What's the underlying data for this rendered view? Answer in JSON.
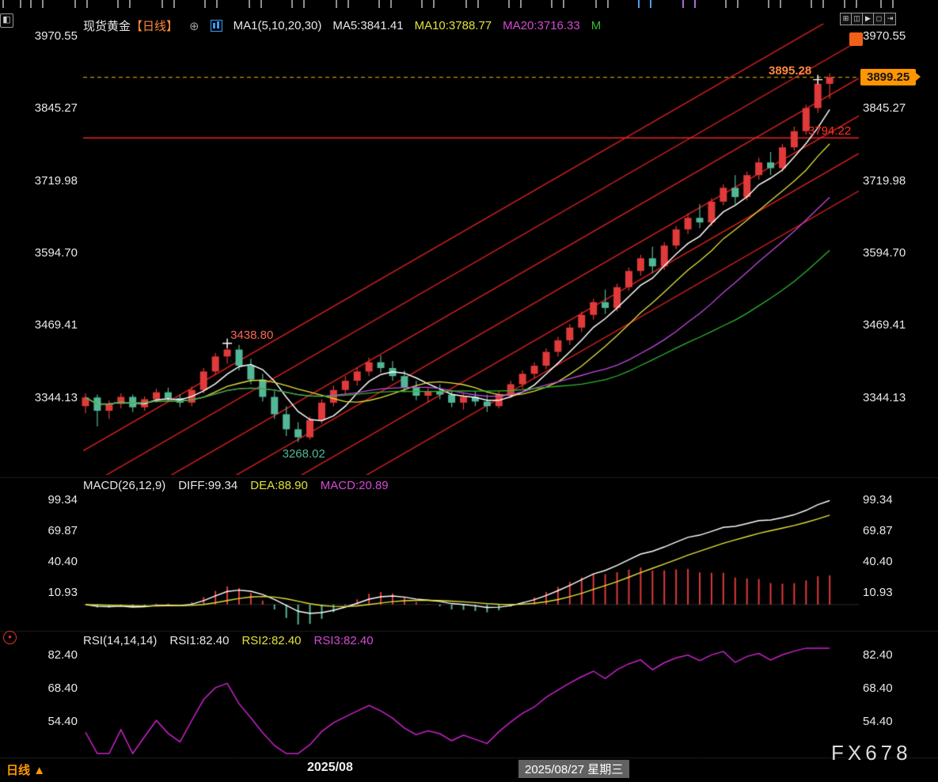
{
  "header": {
    "title_symbol": "现货黄金",
    "title_period": "【日线】",
    "ma_group": "MA1(5,10,20,30)",
    "ma5": "MA5:3841.41",
    "ma10": "MA10:3788.77",
    "ma20": "MA20:3716.33",
    "ma30_short": "M"
  },
  "icons": {
    "collapse_panel": "◧",
    "expand": "⊕",
    "layout_controls": [
      "⊞",
      "◫",
      "▶",
      "◻",
      "⇥"
    ],
    "target": "●",
    "timeframe_arrow": "▲"
  },
  "annotations": {
    "swing_high": "3895.28",
    "current_price": "3899.25",
    "resistance": "3794.22",
    "local_high": "3438.80",
    "local_low": "3268.02"
  },
  "macd_panel": {
    "name": "MACD(26,12,9)",
    "diff": "DIFF:99.34",
    "dea": "DEA:88.90",
    "macd": "MACD:20.89"
  },
  "rsi_panel": {
    "name": "RSI(14,14,14)",
    "rsi1": "RSI1:82.40",
    "rsi2": "RSI2:82.40",
    "rsi3": "RSI3:82.40"
  },
  "footer": {
    "timeframe": "日线",
    "month_label": "2025/08",
    "date_label": "2025/08/27 星期三",
    "watermark": "FX678"
  },
  "chart_data": {
    "type": "candlestick",
    "symbol": "现货黄金",
    "timeframe": "日线",
    "colors": {
      "up": "#e03a3a",
      "down": "#52b796",
      "ma": [
        "#ffffff",
        "#e2e23a",
        "#c24ae0",
        "#2eb82e"
      ],
      "trend": "#dd2020",
      "hline": "#ee2222",
      "dashed": "#c8920a",
      "rsi_line": "#cc22cc",
      "diff_line": "#ffffff",
      "dea_line": "#e2e23a"
    },
    "axes": {
      "price_ticks": [
        3970.55,
        3845.27,
        3719.98,
        3594.7,
        3469.41,
        3344.13
      ],
      "macd_ticks": [
        99.34,
        69.87,
        40.4,
        10.93
      ],
      "rsi_ticks": [
        82.4,
        68.4,
        54.4
      ],
      "price_range": [
        3211,
        3992
      ],
      "macd_range": [
        -21.3,
        105
      ],
      "rsi_range": [
        40,
        85.8
      ]
    },
    "overlays": {
      "ma_periods": [
        5,
        10,
        20,
        30
      ],
      "trend_channel": {
        "slope_per_bar": 11.8,
        "intercepts": [
          2930,
          2995,
          3060,
          3125,
          3190,
          3255
        ]
      },
      "horizontal_line": {
        "price": 3794.22
      },
      "dashed_line": {
        "price": 3899.25
      },
      "markers": [
        {
          "bar": 62,
          "price": 3895.28
        },
        {
          "bar": 12,
          "price": 3438.8
        }
      ],
      "low_label_bar": 18,
      "low_label_price": 3268.02
    },
    "indicators": {
      "macd": {
        "slow": 26,
        "fast": 12,
        "signal": 9,
        "diff": 99.34,
        "dea": 88.9,
        "macd": 20.89
      },
      "rsi": {
        "periods": [
          14,
          14,
          14
        ],
        "values": [
          82.4,
          82.4,
          82.4
        ]
      }
    },
    "candles": [
      [
        3330,
        3352,
        3318,
        3345
      ],
      [
        3345,
        3350,
        3295,
        3322
      ],
      [
        3322,
        3340,
        3308,
        3334
      ],
      [
        3334,
        3352,
        3326,
        3346
      ],
      [
        3346,
        3350,
        3320,
        3328
      ],
      [
        3328,
        3347,
        3322,
        3342
      ],
      [
        3342,
        3360,
        3336,
        3354
      ],
      [
        3354,
        3362,
        3338,
        3344
      ],
      [
        3344,
        3350,
        3328,
        3336
      ],
      [
        3336,
        3364,
        3330,
        3358
      ],
      [
        3358,
        3396,
        3352,
        3390
      ],
      [
        3390,
        3422,
        3384,
        3416
      ],
      [
        3416,
        3438.8,
        3404,
        3428
      ],
      [
        3428,
        3436,
        3392,
        3400
      ],
      [
        3400,
        3412,
        3368,
        3376
      ],
      [
        3376,
        3386,
        3338,
        3346
      ],
      [
        3346,
        3356,
        3308,
        3316
      ],
      [
        3316,
        3330,
        3278,
        3290
      ],
      [
        3290,
        3302,
        3268.02,
        3276
      ],
      [
        3276,
        3312,
        3272,
        3306
      ],
      [
        3306,
        3342,
        3300,
        3336
      ],
      [
        3336,
        3366,
        3330,
        3358
      ],
      [
        3358,
        3382,
        3350,
        3374
      ],
      [
        3374,
        3396,
        3366,
        3390
      ],
      [
        3390,
        3414,
        3382,
        3406
      ],
      [
        3406,
        3418,
        3388,
        3396
      ],
      [
        3396,
        3408,
        3374,
        3382
      ],
      [
        3382,
        3392,
        3354,
        3362
      ],
      [
        3362,
        3374,
        3340,
        3348
      ],
      [
        3348,
        3362,
        3336,
        3356
      ],
      [
        3356,
        3368,
        3342,
        3350
      ],
      [
        3350,
        3358,
        3328,
        3336
      ],
      [
        3336,
        3354,
        3324,
        3346
      ],
      [
        3346,
        3356,
        3330,
        3338
      ],
      [
        3338,
        3350,
        3320,
        3330
      ],
      [
        3330,
        3356,
        3326,
        3350
      ],
      [
        3350,
        3374,
        3344,
        3368
      ],
      [
        3368,
        3392,
        3360,
        3386
      ],
      [
        3386,
        3406,
        3378,
        3400
      ],
      [
        3400,
        3430,
        3394,
        3424
      ],
      [
        3424,
        3450,
        3416,
        3444
      ],
      [
        3444,
        3472,
        3436,
        3466
      ],
      [
        3466,
        3494,
        3458,
        3488
      ],
      [
        3488,
        3516,
        3480,
        3510
      ],
      [
        3510,
        3532,
        3490,
        3500
      ],
      [
        3500,
        3542,
        3494,
        3536
      ],
      [
        3536,
        3570,
        3530,
        3564
      ],
      [
        3564,
        3592,
        3556,
        3586
      ],
      [
        3586,
        3606,
        3560,
        3572
      ],
      [
        3572,
        3614,
        3566,
        3608
      ],
      [
        3608,
        3642,
        3602,
        3636
      ],
      [
        3636,
        3664,
        3628,
        3656
      ],
      [
        3656,
        3680,
        3638,
        3648
      ],
      [
        3648,
        3690,
        3642,
        3684
      ],
      [
        3684,
        3714,
        3678,
        3708
      ],
      [
        3708,
        3730,
        3680,
        3692
      ],
      [
        3692,
        3736,
        3686,
        3730
      ],
      [
        3730,
        3760,
        3722,
        3752
      ],
      [
        3752,
        3770,
        3730,
        3742
      ],
      [
        3742,
        3784,
        3736,
        3778
      ],
      [
        3778,
        3814,
        3772,
        3806
      ],
      [
        3806,
        3852,
        3800,
        3846
      ],
      [
        3846,
        3895.28,
        3838,
        3888
      ],
      [
        3888,
        3906,
        3862,
        3899.25
      ]
    ]
  }
}
